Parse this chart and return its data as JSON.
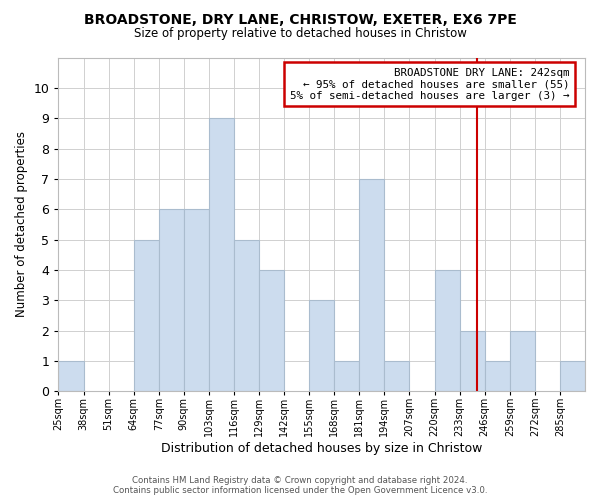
{
  "title": "BROADSTONE, DRY LANE, CHRISTOW, EXETER, EX6 7PE",
  "subtitle": "Size of property relative to detached houses in Christow",
  "xlabel": "Distribution of detached houses by size in Christow",
  "ylabel": "Number of detached properties",
  "bar_color": "#ccdcee",
  "bar_edge_color": "#aabcce",
  "bins": [
    25,
    38,
    51,
    64,
    77,
    90,
    103,
    116,
    129,
    142,
    155,
    168,
    181,
    194,
    207,
    220,
    233,
    246,
    259,
    272,
    285
  ],
  "counts": [
    1,
    0,
    0,
    5,
    6,
    6,
    9,
    5,
    4,
    0,
    3,
    1,
    7,
    1,
    0,
    4,
    2,
    1,
    2,
    0,
    1
  ],
  "tick_labels": [
    "25sqm",
    "38sqm",
    "51sqm",
    "64sqm",
    "77sqm",
    "90sqm",
    "103sqm",
    "116sqm",
    "129sqm",
    "142sqm",
    "155sqm",
    "168sqm",
    "181sqm",
    "194sqm",
    "207sqm",
    "220sqm",
    "233sqm",
    "246sqm",
    "259sqm",
    "272sqm",
    "285sqm"
  ],
  "ylim": [
    0,
    11
  ],
  "yticks": [
    0,
    1,
    2,
    3,
    4,
    5,
    6,
    7,
    8,
    9,
    10,
    11
  ],
  "property_line_x": 242,
  "property_line_color": "#cc0000",
  "annotation_text": "BROADSTONE DRY LANE: 242sqm\n← 95% of detached houses are smaller (55)\n5% of semi-detached houses are larger (3) →",
  "annotation_box_color": "#ffffff",
  "annotation_box_edge": "#cc0000",
  "footer_line1": "Contains HM Land Registry data © Crown copyright and database right 2024.",
  "footer_line2": "Contains public sector information licensed under the Open Government Licence v3.0.",
  "background_color": "#ffffff",
  "grid_color": "#d0d0d0"
}
